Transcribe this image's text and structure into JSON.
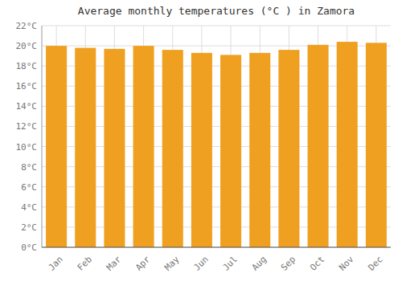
{
  "chart_data": {
    "type": "bar",
    "title": "Average monthly temperatures (°C ) in Zamora",
    "categories": [
      "Jan",
      "Feb",
      "Mar",
      "Apr",
      "May",
      "Jun",
      "Jul",
      "Aug",
      "Sep",
      "Oct",
      "Nov",
      "Dec"
    ],
    "values": [
      20.0,
      19.8,
      19.7,
      20.0,
      19.6,
      19.3,
      19.1,
      19.3,
      19.6,
      20.1,
      20.4,
      20.3
    ],
    "color": "#F0A020",
    "ylim": [
      0,
      22
    ],
    "yticks": [
      {
        "value": 0,
        "label": "0°C"
      },
      {
        "value": 2,
        "label": "2°C"
      },
      {
        "value": 4,
        "label": "4°C"
      },
      {
        "value": 6,
        "label": "6°C"
      },
      {
        "value": 8,
        "label": "8°C"
      },
      {
        "value": 10,
        "label": "10°C"
      },
      {
        "value": 12,
        "label": "12°C"
      },
      {
        "value": 14,
        "label": "14°C"
      },
      {
        "value": 16,
        "label": "16°C"
      },
      {
        "value": 18,
        "label": "18°C"
      },
      {
        "value": 20,
        "label": "20°C"
      },
      {
        "value": 22,
        "label": "22°C"
      }
    ],
    "grid": true
  }
}
